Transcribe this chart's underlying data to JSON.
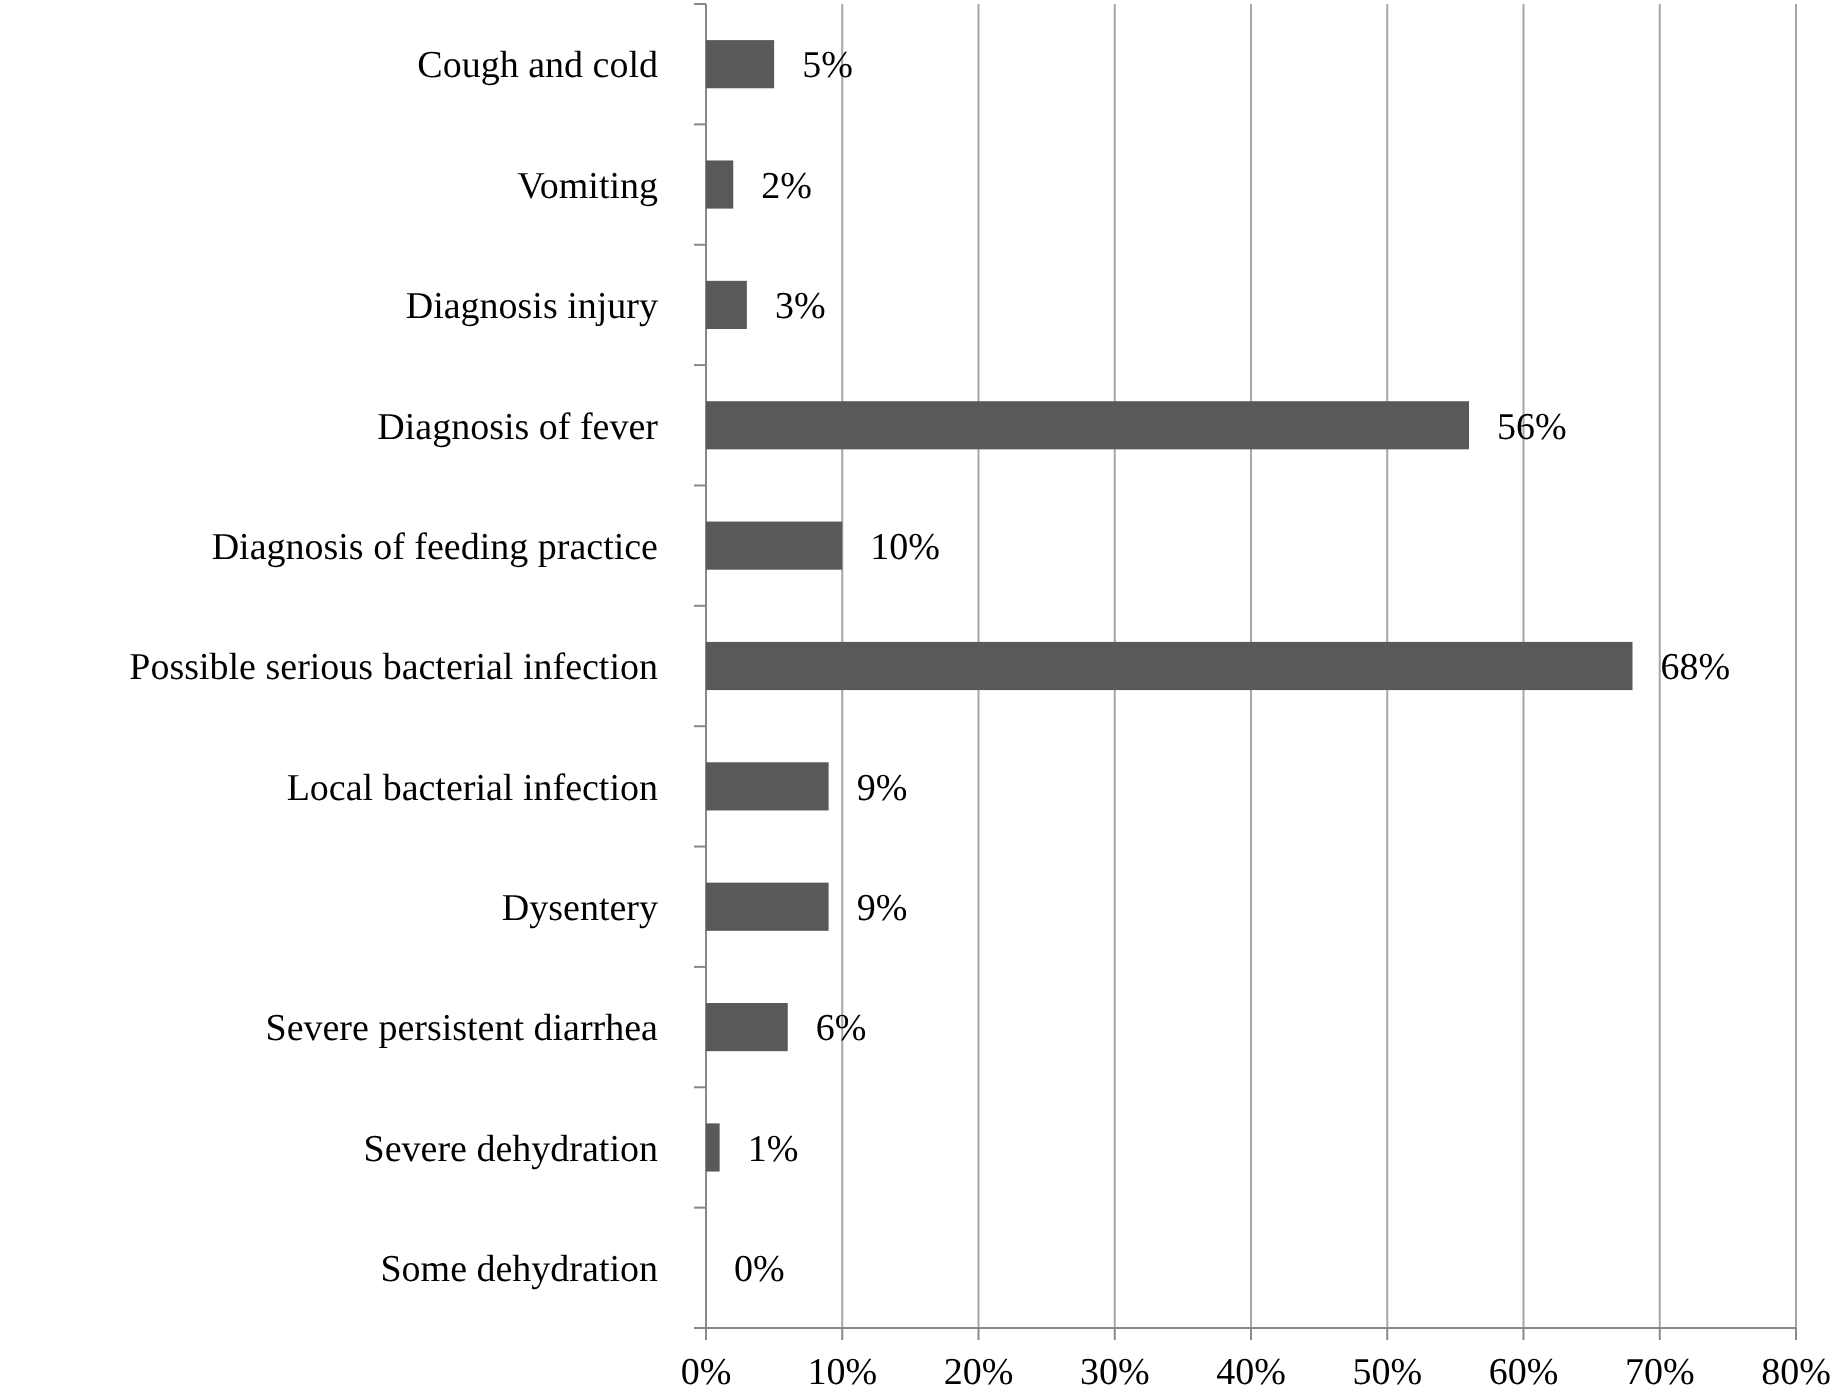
{
  "chart_data": {
    "type": "bar",
    "orientation": "horizontal",
    "categories": [
      "Cough and cold",
      "Vomiting",
      "Diagnosis injury",
      "Diagnosis of fever",
      "Diagnosis of feeding practice",
      "Possible serious bacterial infection",
      "Local bacterial infection",
      "Dysentery",
      "Severe persistent diarrhea",
      "Severe dehydration",
      "Some dehydration"
    ],
    "values": [
      5,
      2,
      3,
      56,
      10,
      68,
      9,
      9,
      6,
      1,
      0
    ],
    "value_labels": [
      "5%",
      "2%",
      "3%",
      "56%",
      "10%",
      "68%",
      "9%",
      "9%",
      "6%",
      "1%",
      "0%"
    ],
    "color": "#595959",
    "xlim": [
      0,
      80
    ],
    "xticks": [
      {
        "value": 0,
        "label": "0%"
      },
      {
        "value": 10,
        "label": "10%"
      },
      {
        "value": 20,
        "label": "20%"
      },
      {
        "value": 30,
        "label": "30%"
      },
      {
        "value": 40,
        "label": "40%"
      },
      {
        "value": 50,
        "label": "50%"
      },
      {
        "value": 60,
        "label": "60%"
      },
      {
        "value": 70,
        "label": "70%"
      },
      {
        "value": 80,
        "label": "80%"
      }
    ],
    "grid": "x"
  }
}
